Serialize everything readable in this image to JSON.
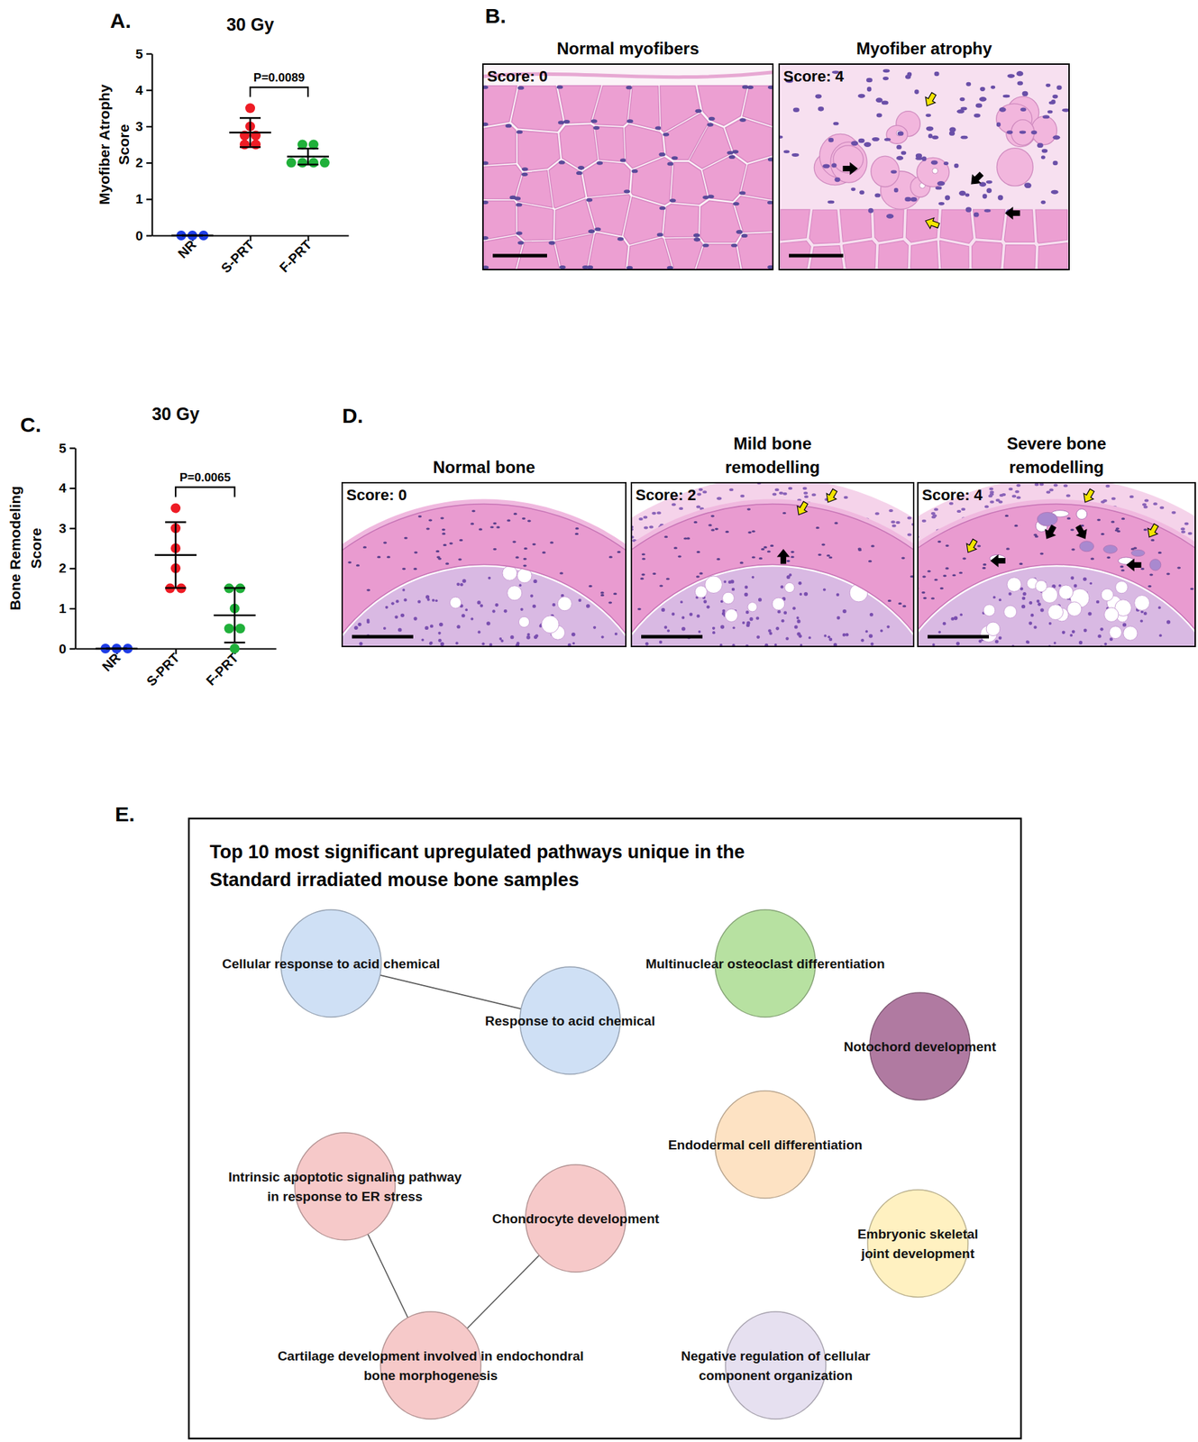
{
  "chart_data": [
    {
      "type": "dot",
      "panel_label": "A.",
      "title": "30 Gy",
      "ylabel": [
        "Myofiber Atrophy",
        "Score"
      ],
      "categories": [
        "NR",
        "S-PRT",
        "F-PRT"
      ],
      "colors": [
        "#1f3de6",
        "#ee1c25",
        "#20b03a"
      ],
      "points": [
        [
          0,
          0,
          0
        ],
        [
          3.5,
          3.0,
          2.75,
          2.75,
          2.5,
          2.5
        ],
        [
          2.5,
          2.5,
          2.0,
          2.0,
          2.0,
          2.0
        ]
      ],
      "values": [
        0,
        2.83,
        2.17
      ],
      "errors": [
        0,
        0.4,
        0.22
      ],
      "ylim": [
        0,
        5
      ],
      "yticks": [
        0,
        1,
        2,
        3,
        4,
        5
      ],
      "comparisons": [
        {
          "groups": [
            "S-PRT",
            "F-PRT"
          ],
          "label": "P=0.0089"
        }
      ]
    },
    {
      "type": "dot",
      "panel_label": "C.",
      "title": "30 Gy",
      "ylabel": [
        "Bone Remodeling",
        "Score"
      ],
      "categories": [
        "NR",
        "S-PRT",
        "F-PRT"
      ],
      "colors": [
        "#1f3de6",
        "#ee1c25",
        "#20b03a"
      ],
      "points": [
        [
          0,
          0,
          0
        ],
        [
          3.5,
          3.0,
          2.5,
          2.0,
          1.5,
          1.5
        ],
        [
          1.5,
          1.5,
          1.0,
          0.5,
          0.5,
          0
        ]
      ],
      "values": [
        0,
        2.33,
        0.83
      ],
      "errors": [
        0,
        0.82,
        0.68
      ],
      "ylim": [
        0,
        5
      ],
      "yticks": [
        0,
        1,
        2,
        3,
        4,
        5
      ],
      "comparisons": [
        {
          "groups": [
            "S-PRT",
            "F-PRT"
          ],
          "label": "P=0.0065"
        }
      ]
    }
  ],
  "images": [
    {
      "panel_label": "B.",
      "items": [
        {
          "title": [
            "Normal myofibers"
          ],
          "score": "Score: 0"
        },
        {
          "title": [
            "Myofiber atrophy"
          ],
          "score": "Score: 4"
        }
      ]
    },
    {
      "panel_label": "D.",
      "items": [
        {
          "title": [
            "Normal bone"
          ],
          "score": "Score: 0"
        },
        {
          "title": [
            "Mild bone",
            "remodelling"
          ],
          "score": "Score: 2"
        },
        {
          "title": [
            "Severe bone",
            "remodelling"
          ],
          "score": "Score: 4"
        }
      ]
    }
  ],
  "network": {
    "panel_label": "E.",
    "title": [
      "Top 10 most significant upregulated pathways unique in the",
      "Standard irradiated mouse bone samples"
    ],
    "nodes": [
      {
        "label": [
          "Cellular response to acid chemical"
        ],
        "color": "#cfe0f5"
      },
      {
        "label": [
          "Response to acid chemical"
        ],
        "color": "#cfe0f5"
      },
      {
        "label": [
          "Multinuclear osteoclast differentiation"
        ],
        "color": "#b7e1a1"
      },
      {
        "label": [
          "Notochord development"
        ],
        "color": "#b07aa1"
      },
      {
        "label": [
          "Endodermal cell differentiation"
        ],
        "color": "#fde2c3"
      },
      {
        "label": [
          "Embryonic skeletal",
          "joint development"
        ],
        "color": "#fff1c1"
      },
      {
        "label": [
          "Intrinsic apoptotic signaling pathway",
          "in response to ER stress"
        ],
        "color": "#f6c9c9"
      },
      {
        "label": [
          "Chondrocyte development"
        ],
        "color": "#f6c9c9"
      },
      {
        "label": [
          "Cartilage development involved in endochondral",
          "bone morphogenesis"
        ],
        "color": "#f6c9c9"
      },
      {
        "label": [
          "Negative regulation of cellular",
          "component organization"
        ],
        "color": "#e6e0f0"
      }
    ],
    "edges": [
      [
        0,
        1
      ],
      [
        6,
        8
      ],
      [
        7,
        8
      ]
    ]
  }
}
